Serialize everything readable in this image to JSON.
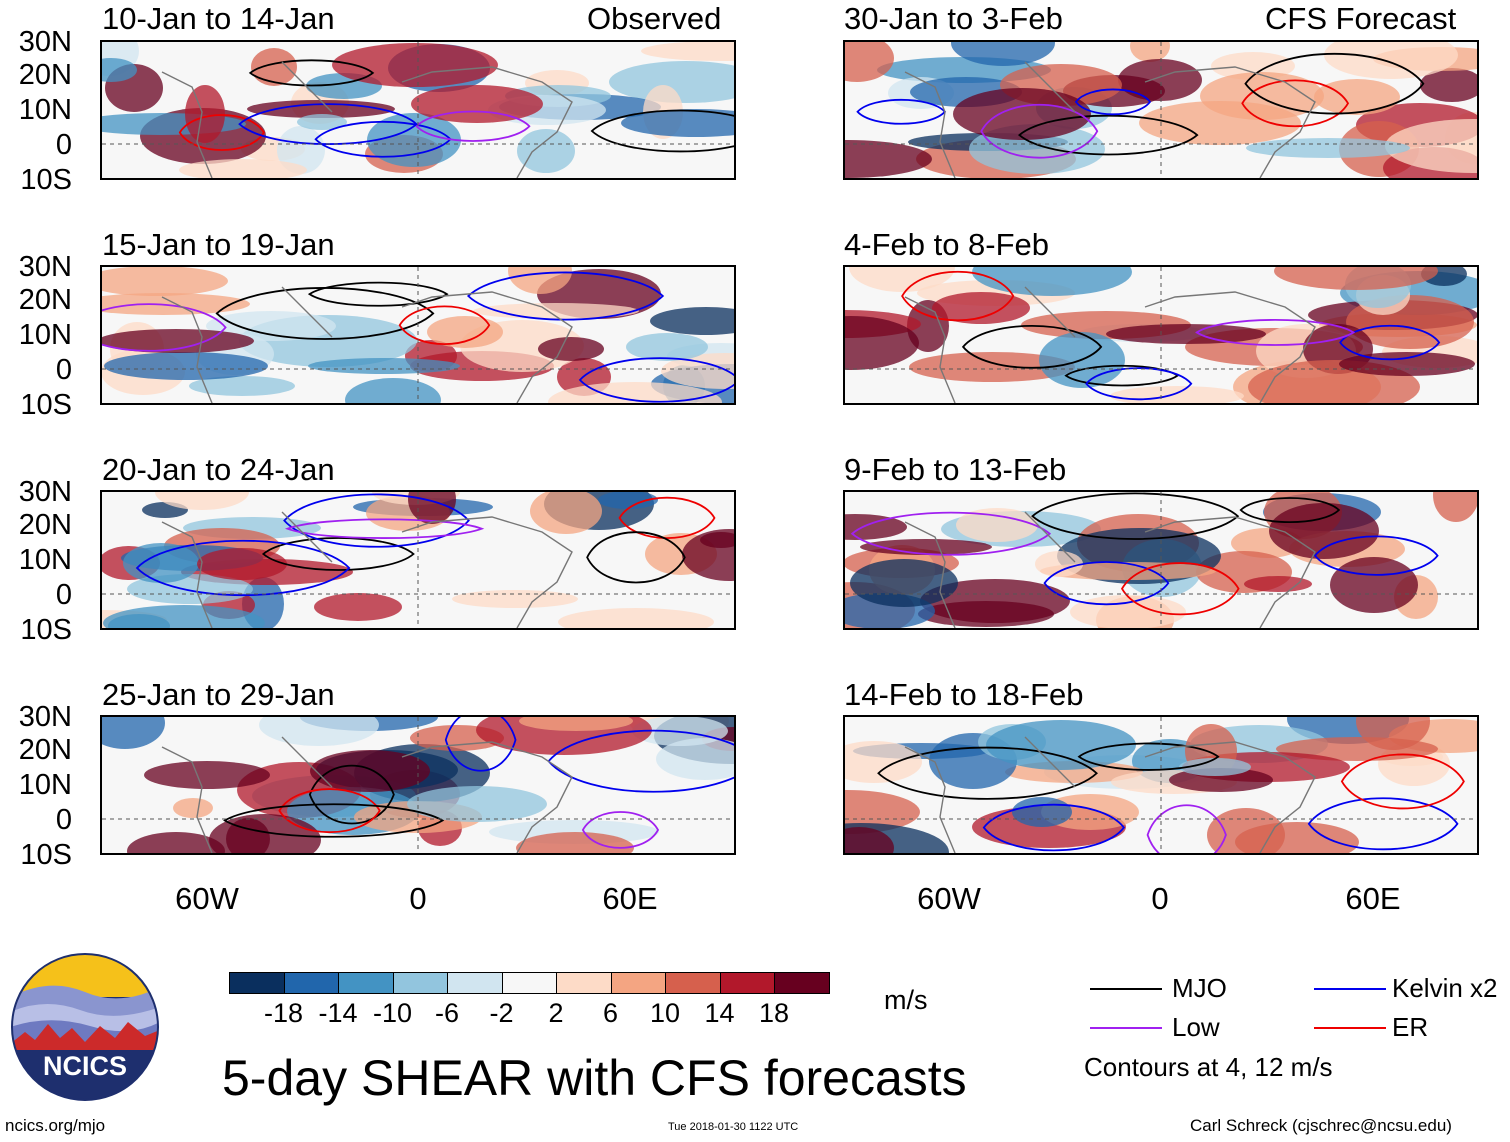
{
  "title": "5-day SHEAR with CFS forecasts",
  "units": "m/s",
  "logo": {
    "text": "NCICS"
  },
  "footer": {
    "url": "ncics.org/mjo",
    "timestamp": "Tue 2018-01-30 1122 UTC",
    "author": "Carl Schreck (cjschrec@ncsu.edu)"
  },
  "column_labels": {
    "left": "Observed",
    "right": "CFS Forecast"
  },
  "lat_labels": [
    "30N",
    "20N",
    "10N",
    "0",
    "10S"
  ],
  "lon_labels": [
    "60W",
    "0",
    "60E"
  ],
  "panels_left": [
    {
      "title": "10-Jan to 14-Jan"
    },
    {
      "title": "15-Jan to 19-Jan"
    },
    {
      "title": "20-Jan to 24-Jan"
    },
    {
      "title": "25-Jan to 29-Jan"
    }
  ],
  "panels_right": [
    {
      "title": "30-Jan to 3-Feb"
    },
    {
      "title": "4-Feb to 8-Feb"
    },
    {
      "title": "9-Feb to 13-Feb"
    },
    {
      "title": "14-Feb to 18-Feb"
    }
  ],
  "colorbar": {
    "labels": [
      "-18",
      "-14",
      "-10",
      "-6",
      "-2",
      "2",
      "6",
      "10",
      "14",
      "18"
    ],
    "colors": [
      "#0a2f5e",
      "#2166ac",
      "#4393c3",
      "#92c5de",
      "#d1e5f0",
      "#f7f7f7",
      "#fddbc7",
      "#f4a582",
      "#d6604d",
      "#b2182b",
      "#67001f"
    ]
  },
  "legend": {
    "items": [
      {
        "label": "MJO",
        "color": "#000000"
      },
      {
        "label": "Kelvin x2",
        "color": "#0000ee"
      },
      {
        "label": "Low",
        "color": "#a020f0"
      },
      {
        "label": "ER",
        "color": "#ee0000"
      }
    ],
    "note": "Contours at 4, 12 m/s"
  }
}
